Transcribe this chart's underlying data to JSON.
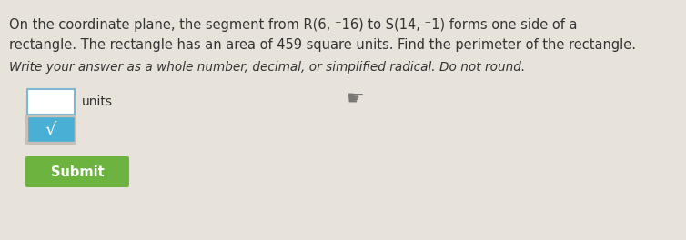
{
  "background_color": "#e8e3da",
  "line1": "On the coordinate plane, the segment from R(6, ⁻16) to S(14, ⁻1) forms one side of a",
  "line2": "rectangle. The rectangle has an area of 459 square units. Find the perimeter of the rectangle.",
  "instruction_text": "Write your answer as a whole number, decimal, or simplified radical. Do not round.",
  "units_label": "units",
  "submit_label": "Submit",
  "submit_bg": "#6db33f",
  "submit_text_color": "#ffffff",
  "input_box_color": "#ffffff",
  "input_border_color": "#7ab8d4",
  "sqrt_box_bg": "#4aafd4",
  "sqrt_symbol": "√",
  "sqrt_line": "—",
  "main_font_size": 10.5,
  "instruction_font_size": 9.8,
  "text_color": "#333333",
  "hand_cursor": "☞"
}
